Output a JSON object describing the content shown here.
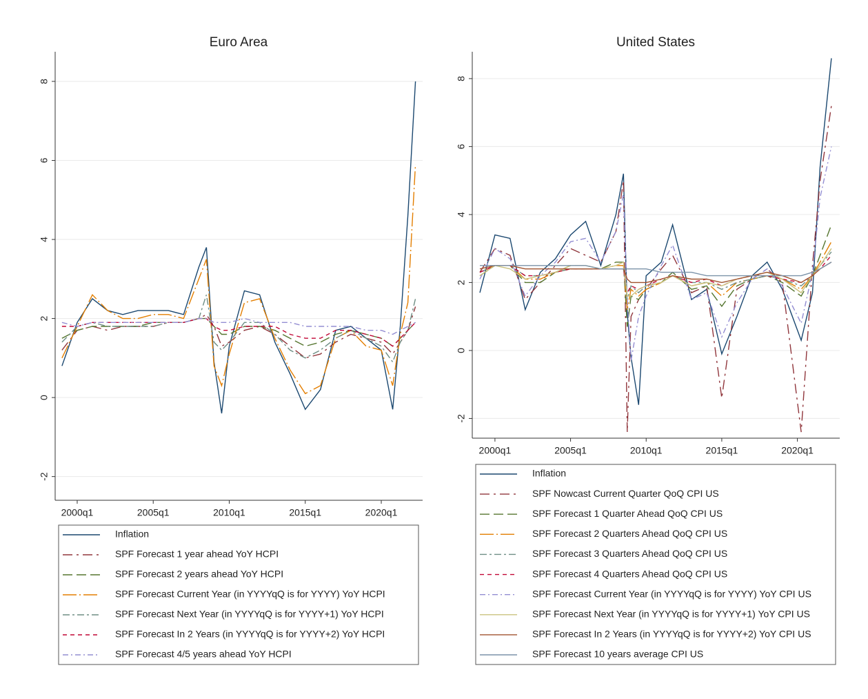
{
  "chart_data": [
    {
      "type": "line",
      "title": "Euro Area",
      "x": [
        1999,
        2000,
        2001,
        2002,
        2003,
        2004,
        2005,
        2006,
        2007,
        2008,
        2008.5,
        2009,
        2009.5,
        2010,
        2011,
        2012,
        2013,
        2014,
        2015,
        2016,
        2017,
        2018,
        2019,
        2020,
        2020.75,
        2021.25,
        2021.75,
        2022.25
      ],
      "xlim": [
        1998.55,
        2022.72
      ],
      "ylim": [
        -2.6,
        8.75
      ],
      "xticks": [
        {
          "value": 2000,
          "label": "2000q1"
        },
        {
          "value": 2005,
          "label": "2005q1"
        },
        {
          "value": 2010,
          "label": "2010q1"
        },
        {
          "value": 2015,
          "label": "2015q1"
        },
        {
          "value": 2020,
          "label": "2020q1"
        }
      ],
      "yticks": [
        -2,
        0,
        2,
        4,
        6,
        8
      ],
      "grid": true,
      "legend": "bottom",
      "series": [
        {
          "name": "Inflation",
          "color": "#1a476f",
          "dash": "none",
          "values": [
            0.8,
            1.9,
            2.5,
            2.2,
            2.1,
            2.2,
            2.2,
            2.2,
            2.1,
            3.3,
            3.8,
            0.9,
            -0.4,
            1.3,
            2.7,
            2.6,
            1.4,
            0.6,
            -0.3,
            0.2,
            1.7,
            1.8,
            1.5,
            1.2,
            -0.3,
            1.8,
            4.6,
            8.0
          ]
        },
        {
          "name": "SPF Forecast 1 year ahead YoY HCPI",
          "color": "#90353b",
          "dash": "14,6,3,6",
          "values": [
            1.2,
            1.7,
            1.8,
            1.7,
            1.8,
            1.8,
            1.8,
            1.9,
            1.9,
            2.0,
            2.1,
            1.8,
            1.3,
            1.4,
            1.7,
            1.8,
            1.6,
            1.3,
            1.0,
            1.1,
            1.4,
            1.6,
            1.5,
            1.4,
            1.1,
            1.4,
            1.7,
            2.3
          ]
        },
        {
          "name": "SPF Forecast 2 years ahead YoY HCPI",
          "color": "#55752f",
          "dash": "14,6",
          "values": [
            1.5,
            1.7,
            1.8,
            1.8,
            1.8,
            1.8,
            1.9,
            1.9,
            1.9,
            2.0,
            2.0,
            1.8,
            1.6,
            1.6,
            1.8,
            1.8,
            1.7,
            1.5,
            1.3,
            1.4,
            1.6,
            1.7,
            1.6,
            1.5,
            1.3,
            1.5,
            1.7,
            1.9
          ]
        },
        {
          "name": "SPF Forecast Current Year (in YYYYqQ is for YYYY) YoY HCPI",
          "color": "#e37e00",
          "dash": "20,4,2,4",
          "values": [
            1.0,
            1.8,
            2.6,
            2.2,
            2.0,
            2.0,
            2.1,
            2.1,
            2.0,
            3.0,
            3.5,
            0.8,
            0.3,
            1.1,
            2.4,
            2.5,
            1.5,
            0.7,
            0.1,
            0.3,
            1.5,
            1.7,
            1.3,
            1.2,
            0.3,
            1.6,
            2.4,
            5.9
          ]
        },
        {
          "name": "SPF Forecast Next Year (in YYYYqQ is for YYYY+1) YoY HCPI",
          "color": "#6e8e84",
          "dash": "10,4,3,4",
          "values": [
            1.4,
            1.8,
            1.9,
            1.8,
            1.8,
            1.8,
            1.8,
            1.9,
            1.9,
            2.0,
            2.6,
            1.4,
            1.2,
            1.4,
            1.9,
            1.9,
            1.6,
            1.2,
            1.0,
            1.2,
            1.5,
            1.7,
            1.5,
            1.3,
            0.9,
            1.4,
            1.7,
            2.5
          ]
        },
        {
          "name": "SPF Forecast In 2 Years (in YYYYqQ is for YYYY+2) YoY HCPI",
          "color": "#c10534",
          "dash": "6,5",
          "values": [
            1.8,
            1.8,
            1.9,
            1.9,
            1.9,
            1.9,
            1.9,
            1.9,
            1.9,
            2.0,
            2.0,
            1.8,
            1.7,
            1.7,
            1.8,
            1.8,
            1.8,
            1.6,
            1.5,
            1.5,
            1.7,
            1.7,
            1.6,
            1.5,
            1.3,
            1.5,
            1.7,
            1.9
          ]
        },
        {
          "name": "SPF Forecast 4/5 years ahead YoY HCPI",
          "color": "#938dd2",
          "dash": "8,4,2,4",
          "values": [
            1.9,
            1.8,
            1.9,
            1.9,
            1.9,
            1.9,
            1.9,
            1.9,
            1.9,
            2.0,
            2.0,
            1.9,
            1.9,
            1.9,
            2.0,
            1.9,
            1.9,
            1.9,
            1.8,
            1.8,
            1.8,
            1.8,
            1.7,
            1.7,
            1.6,
            1.7,
            1.8,
            1.9
          ]
        }
      ]
    },
    {
      "type": "line",
      "title": "United States",
      "x": [
        1999,
        2000,
        2001,
        2002,
        2003,
        2004,
        2005,
        2006,
        2007,
        2008,
        2008.5,
        2008.75,
        2009,
        2009.5,
        2010,
        2011,
        2011.75,
        2013,
        2014,
        2015,
        2016,
        2017,
        2018,
        2019,
        2020.25,
        2021,
        2021.5,
        2022.25
      ],
      "xlim": [
        1998.5,
        2022.8
      ],
      "ylim": [
        -2.58,
        8.79
      ],
      "xticks": [
        {
          "value": 2000,
          "label": "2000q1"
        },
        {
          "value": 2005,
          "label": "2005q1"
        },
        {
          "value": 2010,
          "label": "2010q1"
        },
        {
          "value": 2015,
          "label": "2015q1"
        },
        {
          "value": 2020,
          "label": "2020q1"
        }
      ],
      "yticks": [
        -2,
        0,
        2,
        4,
        6,
        8
      ],
      "grid": true,
      "legend": "bottom",
      "series": [
        {
          "name": "Inflation",
          "color": "#1a476f",
          "dash": "none",
          "values": [
            1.7,
            3.4,
            3.3,
            1.2,
            2.3,
            2.7,
            3.4,
            3.8,
            2.5,
            4.0,
            5.2,
            1.1,
            -0.2,
            -1.6,
            2.2,
            2.6,
            3.7,
            1.5,
            1.8,
            -0.1,
            1.0,
            2.2,
            2.6,
            1.8,
            0.3,
            1.7,
            5.4,
            8.6
          ]
        },
        {
          "name": "SPF Nowcast Current Quarter QoQ CPI US",
          "color": "#90353b",
          "dash": "14,6,3,6",
          "values": [
            2.3,
            3.0,
            2.8,
            1.5,
            2.0,
            2.5,
            3.0,
            2.8,
            2.6,
            3.5,
            5.0,
            -2.4,
            1.0,
            1.5,
            1.8,
            2.4,
            2.8,
            1.7,
            1.9,
            -1.4,
            1.8,
            2.1,
            2.4,
            2.0,
            -2.4,
            2.5,
            5.0,
            7.2
          ]
        },
        {
          "name": "SPF Forecast 1 Quarter Ahead QoQ CPI US",
          "color": "#55752f",
          "dash": "14,6",
          "values": [
            2.2,
            2.5,
            2.5,
            2.0,
            2.0,
            2.3,
            2.5,
            2.5,
            2.4,
            2.6,
            2.6,
            0.7,
            1.6,
            1.5,
            1.8,
            2.0,
            2.3,
            1.8,
            1.9,
            1.3,
            1.9,
            2.1,
            2.2,
            2.0,
            1.6,
            2.2,
            2.8,
            3.7
          ]
        },
        {
          "name": "SPF Forecast 2 Quarters Ahead QoQ CPI US",
          "color": "#e37e00",
          "dash": "20,4,2,4",
          "values": [
            2.3,
            2.5,
            2.5,
            2.1,
            2.1,
            2.3,
            2.4,
            2.4,
            2.4,
            2.5,
            2.5,
            1.2,
            1.8,
            1.6,
            1.8,
            2.0,
            2.2,
            1.9,
            2.0,
            1.6,
            2.0,
            2.1,
            2.2,
            2.1,
            1.8,
            2.2,
            2.6,
            3.2
          ]
        },
        {
          "name": "SPF Forecast 3 Quarters Ahead QoQ CPI US",
          "color": "#6e8e84",
          "dash": "10,4,3,4",
          "values": [
            2.3,
            2.5,
            2.5,
            2.2,
            2.2,
            2.3,
            2.4,
            2.4,
            2.4,
            2.4,
            2.4,
            1.5,
            1.9,
            1.7,
            1.9,
            2.0,
            2.2,
            2.0,
            2.0,
            1.8,
            2.0,
            2.1,
            2.2,
            2.1,
            1.9,
            2.2,
            2.5,
            2.9
          ]
        },
        {
          "name": "SPF Forecast 4 Quarters Ahead QoQ CPI US",
          "color": "#c10534",
          "dash": "6,5",
          "values": [
            2.3,
            2.5,
            2.5,
            2.2,
            2.2,
            2.3,
            2.4,
            2.4,
            2.4,
            2.4,
            2.4,
            1.7,
            1.9,
            1.8,
            1.9,
            2.1,
            2.2,
            2.0,
            2.1,
            1.9,
            2.1,
            2.2,
            2.2,
            2.1,
            2.0,
            2.2,
            2.4,
            2.8
          ]
        },
        {
          "name": "SPF Forecast Current Year (in YYYYqQ is for YYYY) YoY CPI US",
          "color": "#938dd2",
          "dash": "8,4,2,4",
          "values": [
            2.1,
            3.0,
            2.7,
            1.6,
            2.2,
            2.6,
            3.2,
            3.3,
            2.6,
            3.5,
            4.6,
            1.5,
            -0.3,
            1.0,
            1.6,
            2.5,
            3.1,
            1.5,
            1.7,
            0.4,
            1.4,
            2.1,
            2.4,
            1.9,
            0.8,
            2.3,
            4.5,
            6.0
          ]
        },
        {
          "name": "SPF Forecast Next Year (in YYYYqQ is for YYYY+1) YoY CPI US",
          "color": "#cac27e",
          "dash": "none",
          "values": [
            2.2,
            2.5,
            2.4,
            2.1,
            2.2,
            2.3,
            2.5,
            2.5,
            2.4,
            2.5,
            2.6,
            1.6,
            1.6,
            1.8,
            1.9,
            2.0,
            2.2,
            1.9,
            2.0,
            1.9,
            2.1,
            2.2,
            2.3,
            2.1,
            1.7,
            2.2,
            2.5,
            3.0
          ]
        },
        {
          "name": "SPF Forecast In 2 Years (in YYYYqQ is for YYYY+2) YoY CPI US",
          "color": "#a0522d",
          "dash": "none",
          "values": [
            2.4,
            2.5,
            2.5,
            2.4,
            2.4,
            2.4,
            2.4,
            2.4,
            2.4,
            2.4,
            2.4,
            2.1,
            2.0,
            2.0,
            2.0,
            2.1,
            2.2,
            2.1,
            2.1,
            2.0,
            2.1,
            2.2,
            2.3,
            2.2,
            2.0,
            2.2,
            2.4,
            2.6
          ]
        },
        {
          "name": "SPF Forecast 10 years average CPI US",
          "color": "#7b92a8",
          "dash": "none",
          "values": [
            2.5,
            2.5,
            2.5,
            2.5,
            2.5,
            2.5,
            2.5,
            2.5,
            2.4,
            2.4,
            2.4,
            2.4,
            2.4,
            2.4,
            2.4,
            2.3,
            2.3,
            2.3,
            2.2,
            2.2,
            2.2,
            2.2,
            2.2,
            2.2,
            2.2,
            2.3,
            2.4,
            2.6
          ]
        }
      ]
    }
  ]
}
